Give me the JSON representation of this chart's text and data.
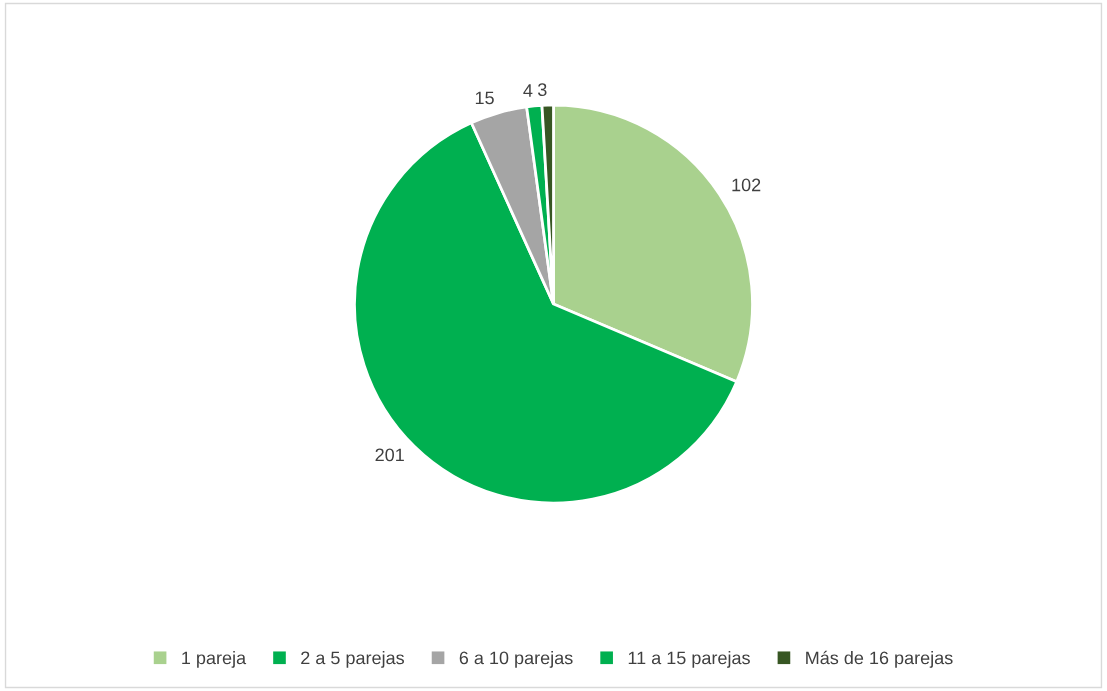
{
  "chart_data": {
    "type": "pie",
    "categories": [
      "1 pareja",
      "2 a 5 parejas",
      "6 a 10 parejas",
      "11 a 15 parejas",
      "Más de 16 parejas"
    ],
    "values": [
      102,
      201,
      15,
      4,
      3
    ],
    "colors": [
      "#a9d18e",
      "#00b050",
      "#a5a5a5",
      "#00b050",
      "#375623"
    ],
    "data_labels": true,
    "legend": "bottom"
  }
}
